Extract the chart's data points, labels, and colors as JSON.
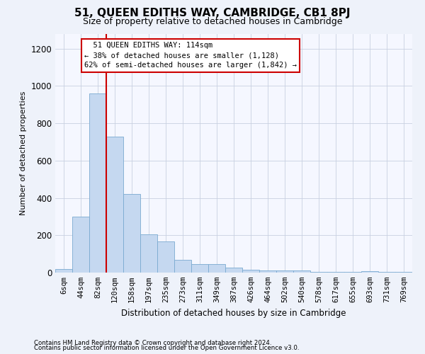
{
  "title": "51, QUEEN EDITHS WAY, CAMBRIDGE, CB1 8PJ",
  "subtitle": "Size of property relative to detached houses in Cambridge",
  "xlabel": "Distribution of detached houses by size in Cambridge",
  "ylabel": "Number of detached properties",
  "categories": [
    "6sqm",
    "44sqm",
    "82sqm",
    "120sqm",
    "158sqm",
    "197sqm",
    "235sqm",
    "273sqm",
    "311sqm",
    "349sqm",
    "387sqm",
    "426sqm",
    "464sqm",
    "502sqm",
    "540sqm",
    "578sqm",
    "617sqm",
    "655sqm",
    "693sqm",
    "731sqm",
    "769sqm"
  ],
  "values": [
    20,
    300,
    960,
    730,
    420,
    205,
    165,
    70,
    45,
    45,
    28,
    15,
    10,
    10,
    10,
    2,
    2,
    2,
    8,
    2,
    2
  ],
  "bar_color": "#c5d8f0",
  "bar_edge_color": "#7aaad0",
  "vline_x": 2.5,
  "vline_color": "#cc0000",
  "annotation_text": "  51 QUEEN EDITHS WAY: 114sqm\n← 38% of detached houses are smaller (1,128)\n62% of semi-detached houses are larger (1,842) →",
  "annotation_box_color": "#ffffff",
  "annotation_box_edge": "#cc0000",
  "ylim": [
    0,
    1280
  ],
  "yticks": [
    0,
    200,
    400,
    600,
    800,
    1000,
    1200
  ],
  "footer1": "Contains HM Land Registry data © Crown copyright and database right 2024.",
  "footer2": "Contains public sector information licensed under the Open Government Licence v3.0.",
  "background_color": "#eef2fa",
  "plot_bg_color": "#f5f7ff",
  "title_fontsize": 11,
  "subtitle_fontsize": 9,
  "ylabel_fontsize": 8,
  "xlabel_fontsize": 8.5,
  "tick_fontsize": 7.5,
  "ytick_fontsize": 8.5,
  "footer_fontsize": 6.2,
  "annot_fontsize": 7.5
}
